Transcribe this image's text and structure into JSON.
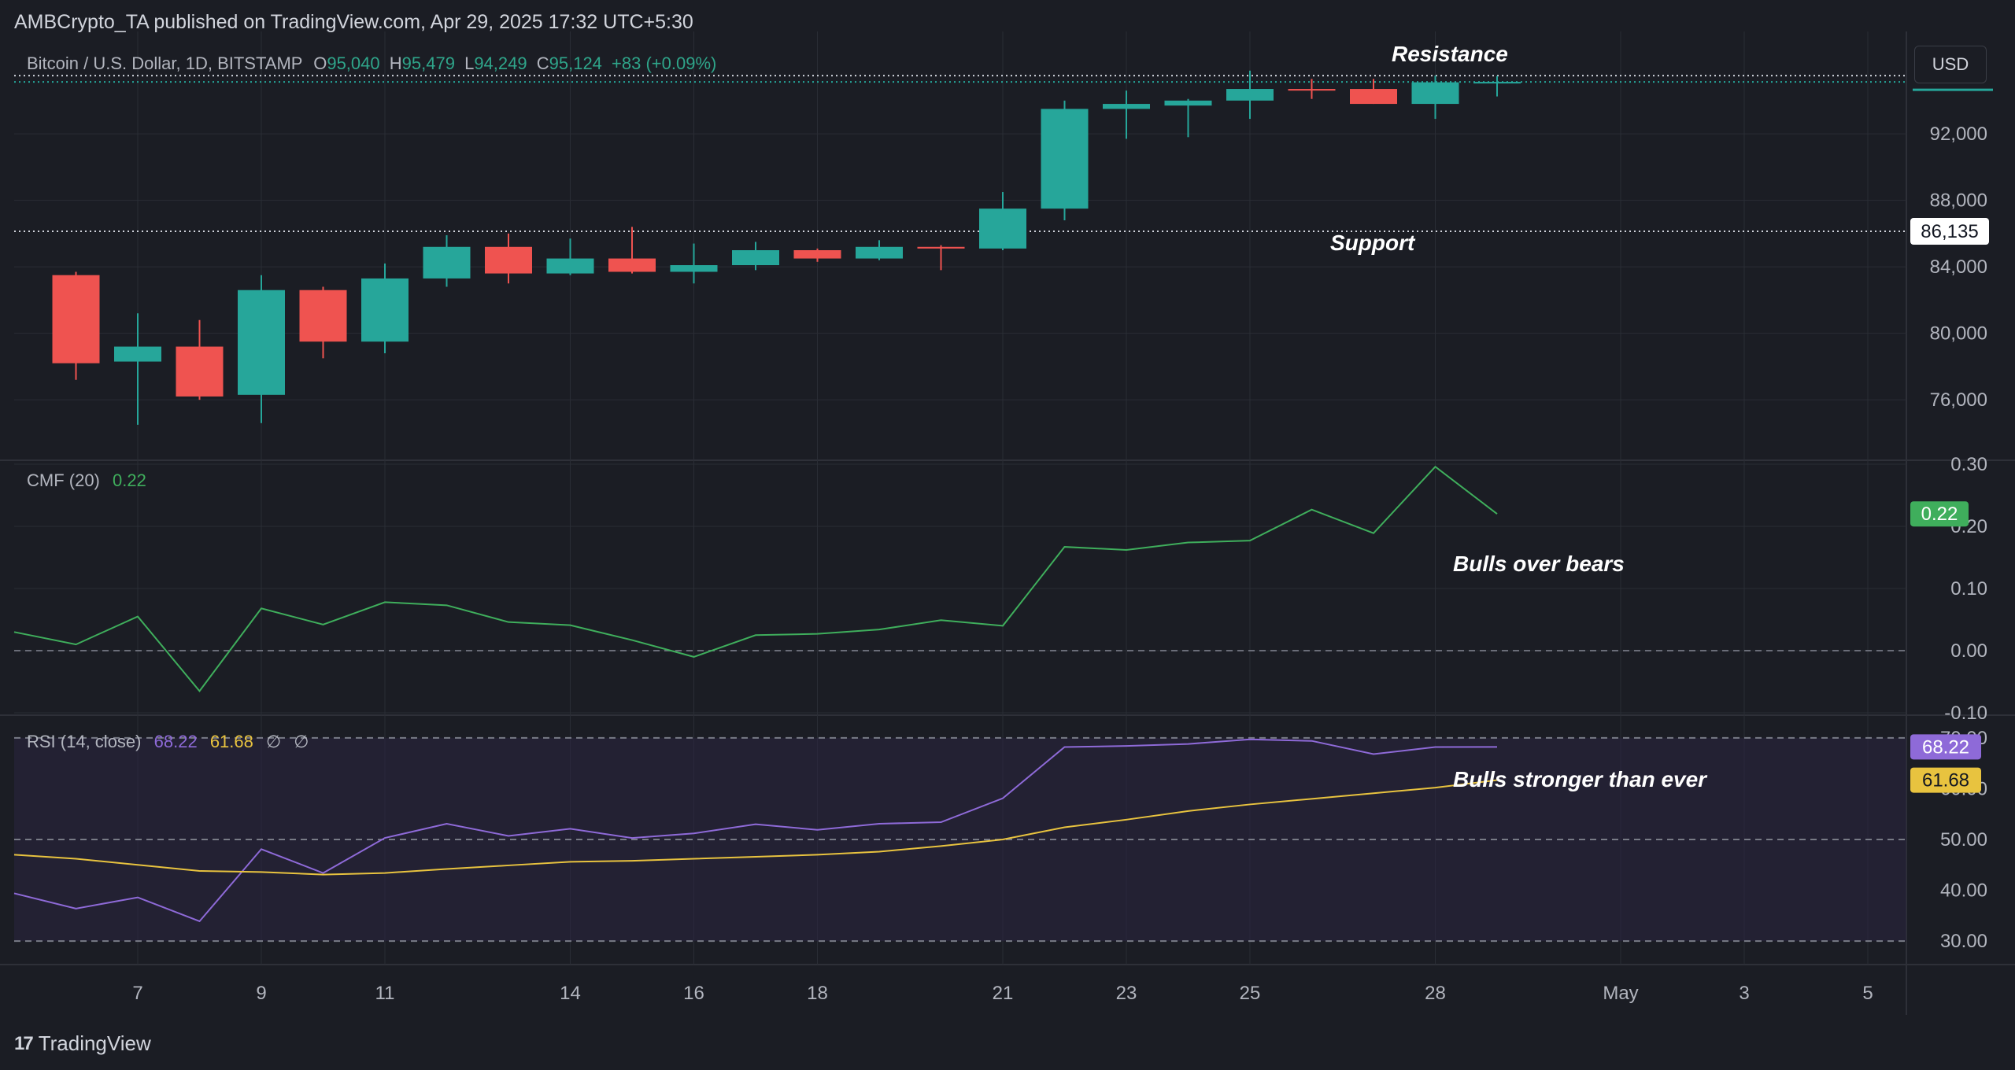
{
  "header": {
    "published_by": "AMBCrypto_TA published on TradingView.com, Apr 29, 2025 17:32 UTC+5:30"
  },
  "currency_button": "USD",
  "brand": "TradingView",
  "colors": {
    "bull": "#26a69a",
    "bear": "#ef5350",
    "cmf": "#3fae5c",
    "rsi": "#8e6ad8",
    "rsi_ma": "#e8c33f",
    "background": "#1b1d24",
    "grid": "#2a2d35",
    "rsi_band": "#2a2440"
  },
  "price_legend": {
    "symbol": "Bitcoin / U.S. Dollar, 1D, BITSTAMP",
    "o_label": "O",
    "o": "95,040",
    "h_label": "H",
    "h": "95,479",
    "l_label": "L",
    "l": "94,249",
    "c_label": "C",
    "c": "95,124",
    "change": "+83 (+0.09%)"
  },
  "cmf_legend": {
    "name": "CMF (20)",
    "value": "0.22"
  },
  "rsi_legend": {
    "name": "RSI (14, close)",
    "rsi": "68.22",
    "ma": "61.68",
    "na1": "∅",
    "na2": "∅"
  },
  "annotations": {
    "resistance": "Resistance",
    "support": "Support",
    "cmf_note": "Bulls over bears",
    "rsi_note": "Bulls stronger than ever"
  },
  "price_labels": {
    "support_level": "86,135",
    "cmf_last": "0.22",
    "rsi_last": "68.22",
    "rsi_ma_last": "61.68"
  },
  "chart_data": [
    {
      "type": "candlestick",
      "title": "Bitcoin / U.S. Dollar, 1D, BITSTAMP",
      "x": [
        "Apr 6",
        "Apr 7",
        "Apr 8",
        "Apr 9",
        "Apr 10",
        "Apr 11",
        "Apr 12",
        "Apr 13",
        "Apr 14",
        "Apr 15",
        "Apr 16",
        "Apr 17",
        "Apr 18",
        "Apr 19",
        "Apr 20",
        "Apr 21",
        "Apr 22",
        "Apr 23",
        "Apr 24",
        "Apr 25",
        "Apr 26",
        "Apr 27",
        "Apr 28",
        "Apr 29"
      ],
      "candles": [
        {
          "o": 83500,
          "h": 83700,
          "l": 77200,
          "c": 78200
        },
        {
          "o": 78300,
          "h": 81200,
          "l": 74500,
          "c": 79200
        },
        {
          "o": 79200,
          "h": 80800,
          "l": 76000,
          "c": 76200
        },
        {
          "o": 76300,
          "h": 83500,
          "l": 74600,
          "c": 82600
        },
        {
          "o": 82600,
          "h": 82800,
          "l": 78500,
          "c": 79500
        },
        {
          "o": 79500,
          "h": 84200,
          "l": 78800,
          "c": 83300
        },
        {
          "o": 83300,
          "h": 85900,
          "l": 82800,
          "c": 85200
        },
        {
          "o": 85200,
          "h": 86000,
          "l": 83000,
          "c": 83600
        },
        {
          "o": 83600,
          "h": 85700,
          "l": 83500,
          "c": 84500
        },
        {
          "o": 84500,
          "h": 86400,
          "l": 83600,
          "c": 83700
        },
        {
          "o": 83700,
          "h": 85400,
          "l": 83000,
          "c": 84100
        },
        {
          "o": 84100,
          "h": 85500,
          "l": 83800,
          "c": 85000
        },
        {
          "o": 85000,
          "h": 85100,
          "l": 84300,
          "c": 84500
        },
        {
          "o": 84500,
          "h": 85600,
          "l": 84400,
          "c": 85200
        },
        {
          "o": 85200,
          "h": 85300,
          "l": 83800,
          "c": 85100
        },
        {
          "o": 85100,
          "h": 88500,
          "l": 85000,
          "c": 87500
        },
        {
          "o": 87500,
          "h": 94000,
          "l": 86800,
          "c": 93500
        },
        {
          "o": 93500,
          "h": 94600,
          "l": 91700,
          "c": 93800
        },
        {
          "o": 93700,
          "h": 94100,
          "l": 91800,
          "c": 94000
        },
        {
          "o": 94000,
          "h": 95800,
          "l": 92900,
          "c": 94700
        },
        {
          "o": 94700,
          "h": 95300,
          "l": 94100,
          "c": 94600
        },
        {
          "o": 94700,
          "h": 95300,
          "l": 93800,
          "c": 93800
        },
        {
          "o": 93800,
          "h": 95500,
          "l": 92900,
          "c": 95100
        },
        {
          "o": 95040,
          "h": 95479,
          "l": 94249,
          "c": 95124
        }
      ],
      "ylim": [
        72600,
        97400
      ],
      "y_ticks": [
        "92,000",
        "88,000",
        "84,000",
        "80,000",
        "76,000"
      ],
      "y_tick_values": [
        92000,
        88000,
        84000,
        80000,
        76000
      ],
      "support": 86135,
      "resistance": 95500,
      "x_tick_labels": [
        "7",
        "9",
        "11",
        "14",
        "16",
        "18",
        "21",
        "23",
        "25",
        "28",
        "May",
        "3",
        "5"
      ],
      "x_tick_days": [
        7,
        9,
        11,
        14,
        16,
        18,
        21,
        23,
        25,
        28,
        31,
        33,
        35
      ]
    },
    {
      "type": "line",
      "title": "CMF (20)",
      "x": [
        "Apr 5",
        "Apr 6",
        "Apr 7",
        "Apr 8",
        "Apr 9",
        "Apr 10",
        "Apr 11",
        "Apr 12",
        "Apr 13",
        "Apr 14",
        "Apr 15",
        "Apr 16",
        "Apr 17",
        "Apr 18",
        "Apr 19",
        "Apr 20",
        "Apr 21",
        "Apr 22",
        "Apr 23",
        "Apr 24",
        "Apr 25",
        "Apr 26",
        "Apr 27",
        "Apr 28",
        "Apr 29"
      ],
      "series": [
        {
          "values": [
            0.03,
            0.01,
            0.055,
            -0.065,
            0.068,
            0.042,
            0.078,
            0.073,
            0.046,
            0.041,
            0.017,
            -0.01,
            0.025,
            0.027,
            0.034,
            0.049,
            0.04,
            0.167,
            0.162,
            0.174,
            0.177,
            0.227,
            0.189,
            0.296,
            0.22
          ]
        }
      ],
      "ylim": [
        -0.1,
        0.3
      ],
      "y_ticks": [
        "0.30",
        "0.20",
        "0.10",
        "0.00",
        "-0.10"
      ],
      "y_tick_values": [
        0.3,
        0.2,
        0.1,
        0.0,
        -0.1
      ],
      "zero_line": 0.0
    },
    {
      "type": "line",
      "title": "RSI (14, close)",
      "x": [
        "Apr 5",
        "Apr 6",
        "Apr 7",
        "Apr 8",
        "Apr 9",
        "Apr 10",
        "Apr 11",
        "Apr 12",
        "Apr 13",
        "Apr 14",
        "Apr 15",
        "Apr 16",
        "Apr 17",
        "Apr 18",
        "Apr 19",
        "Apr 20",
        "Apr 21",
        "Apr 22",
        "Apr 23",
        "Apr 24",
        "Apr 25",
        "Apr 26",
        "Apr 27",
        "Apr 28",
        "Apr 29"
      ],
      "series": [
        {
          "values": [
            39.4,
            36.4,
            38.6,
            33.9,
            48.1,
            43.4,
            50.3,
            53.1,
            50.7,
            52.1,
            50.3,
            51.2,
            53.0,
            51.9,
            53.1,
            53.4,
            58.1,
            68.2,
            68.4,
            68.8,
            69.7,
            69.4,
            66.8,
            68.2,
            68.22
          ]
        },
        {
          "values": [
            47.0,
            46.2,
            45.0,
            43.8,
            43.6,
            43.1,
            43.4,
            44.2,
            44.9,
            45.6,
            45.8,
            46.2,
            46.6,
            47.0,
            47.6,
            48.7,
            50.0,
            52.4,
            53.9,
            55.6,
            56.9,
            58.0,
            59.1,
            60.2,
            61.68
          ]
        }
      ],
      "ylim": [
        26.0,
        74.0
      ],
      "y_ticks": [
        "70.00",
        "60.00",
        "50.00",
        "40.00",
        "30.00"
      ],
      "y_tick_values": [
        70,
        60,
        50,
        40,
        30
      ],
      "bands": [
        30,
        50,
        70
      ]
    }
  ]
}
